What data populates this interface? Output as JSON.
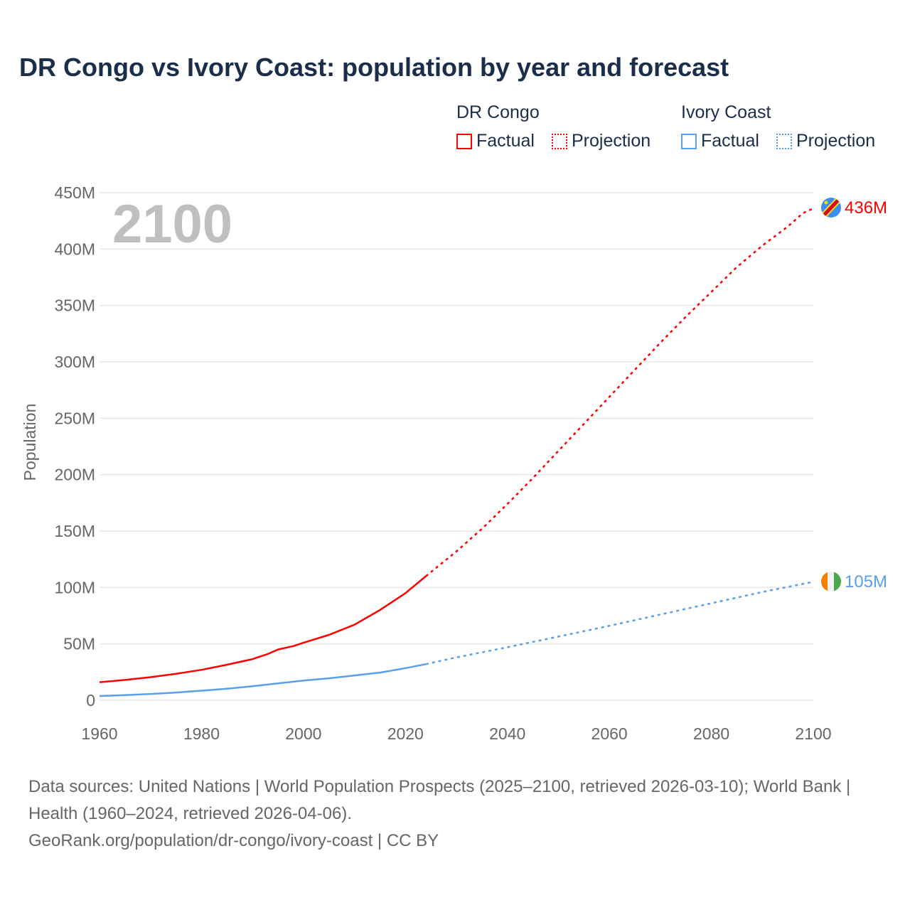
{
  "title": "DR Congo vs Ivory Coast: population by year and forecast",
  "legend": {
    "groups": [
      {
        "name": "DR Congo",
        "factual": "Factual",
        "projection": "Projection",
        "color": "#ff0000"
      },
      {
        "name": "Ivory Coast",
        "factual": "Factual",
        "projection": "Projection",
        "color": "#5aa0e8"
      }
    ]
  },
  "year_display": "2100",
  "footer": {
    "sources": "Data sources: United Nations | World Population Prospects (2025–2100, retrieved 2026-03-10); World Bank | Health (1960–2024, retrieved 2026-04-06).",
    "link": "GeoRank.org/population/dr-congo/ivory-coast | CC BY"
  },
  "chart_data": {
    "type": "line",
    "title": "DR Congo vs Ivory Coast: population by year and forecast",
    "xlabel": "",
    "ylabel": "Population",
    "xlim": [
      1960,
      2100
    ],
    "ylim": [
      0,
      450
    ],
    "x_ticks": [
      "1960",
      "1980",
      "2000",
      "2020",
      "2040",
      "2060",
      "2080",
      "2100"
    ],
    "x_tick_values": [
      1960,
      1980,
      2000,
      2020,
      2040,
      2060,
      2080,
      2100
    ],
    "y_ticks": [
      "0",
      "50M",
      "100M",
      "150M",
      "200M",
      "250M",
      "300M",
      "350M",
      "400M",
      "450M"
    ],
    "y_tick_values": [
      0,
      50,
      100,
      150,
      200,
      250,
      300,
      350,
      400,
      450
    ],
    "units": "millions",
    "grid": true,
    "legend_position": "top-right",
    "series": [
      {
        "name": "DR Congo",
        "color": "#ff0000",
        "end_label": "436M",
        "factual": {
          "x": [
            1960,
            1965,
            1970,
            1975,
            1980,
            1985,
            1990,
            1993,
            1995,
            1998,
            2000,
            2005,
            2010,
            2015,
            2020,
            2024
          ],
          "y": [
            16,
            18,
            20.5,
            23.5,
            27,
            31.5,
            36.5,
            41,
            45,
            48,
            51,
            58,
            67,
            80,
            95,
            110
          ]
        },
        "projection": {
          "x": [
            2024,
            2030,
            2035,
            2040,
            2045,
            2050,
            2055,
            2060,
            2065,
            2070,
            2075,
            2080,
            2085,
            2090,
            2095,
            2098,
            2100
          ],
          "y": [
            110,
            132,
            152,
            174,
            197,
            221,
            245,
            269,
            293,
            317,
            340,
            362,
            384,
            403,
            420,
            432,
            436
          ]
        }
      },
      {
        "name": "Ivory Coast",
        "color": "#5aa0e8",
        "end_label": "105M",
        "factual": {
          "x": [
            1960,
            1965,
            1970,
            1975,
            1980,
            1985,
            1990,
            1995,
            2000,
            2005,
            2010,
            2015,
            2020,
            2024
          ],
          "y": [
            3.8,
            4.6,
            5.6,
            6.9,
            8.5,
            10.3,
            12.5,
            15,
            17.5,
            19.5,
            22,
            24.5,
            28.5,
            32
          ]
        },
        "projection": {
          "x": [
            2024,
            2030,
            2040,
            2050,
            2060,
            2070,
            2080,
            2090,
            2100
          ],
          "y": [
            32,
            38,
            47,
            56.5,
            66,
            76,
            86,
            96,
            105
          ]
        }
      }
    ]
  }
}
